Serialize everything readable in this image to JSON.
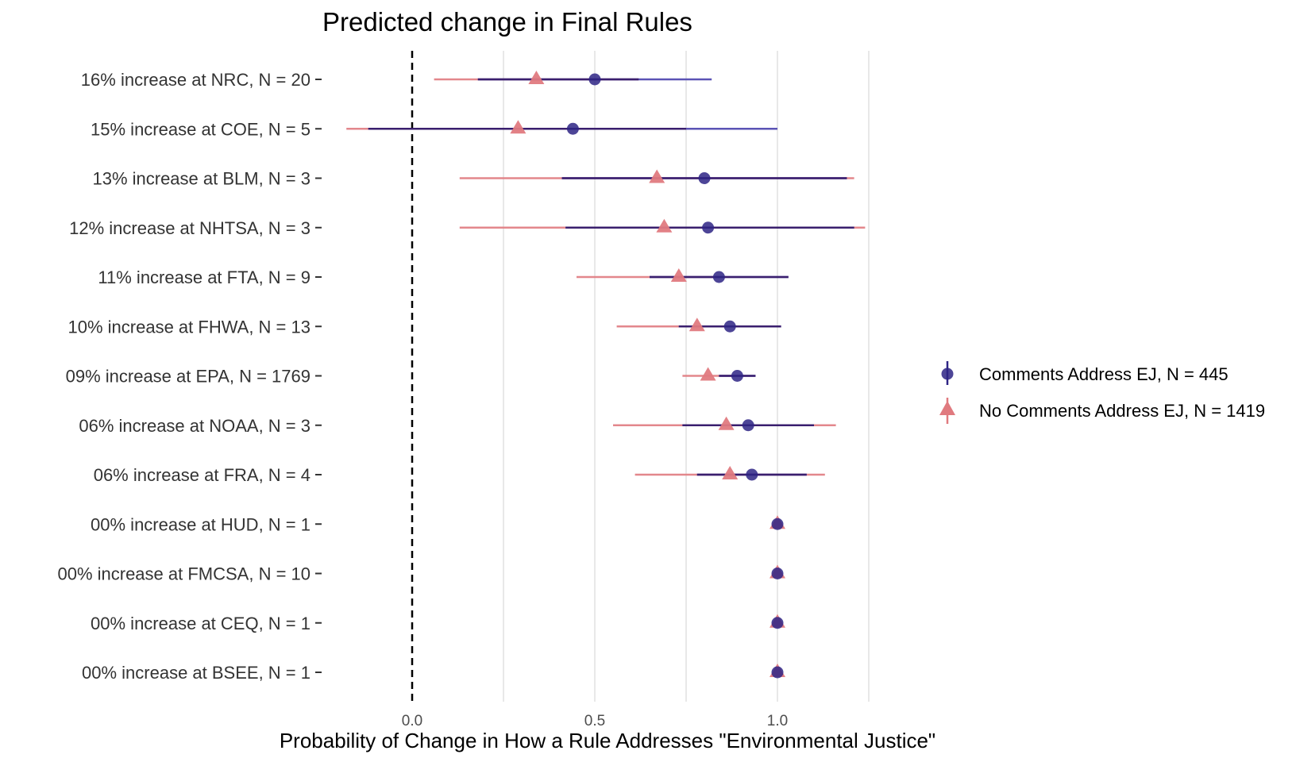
{
  "chart_data": {
    "type": "scatter",
    "title": "Predicted change in Final Rules",
    "xlabel": "Probability of Change in How a Rule Addresses \"Environmental Justice\"",
    "ylabel": "",
    "xlim": [
      -0.18,
      1.25
    ],
    "x_ticks": [
      0.0,
      0.5,
      1.0
    ],
    "x_tick_labels": [
      "0.0",
      "0.5",
      "1.0"
    ],
    "reference_line": {
      "x": 0,
      "style": "dashed"
    },
    "grid": {
      "vertical": true,
      "horizontal": false
    },
    "legend_position": "right",
    "categories": [
      "16% increase at NRC, N = 20",
      "15% increase at COE, N = 5",
      "13% increase at BLM, N = 3",
      "12% increase at NHTSA, N = 3",
      "11% increase at FTA, N = 9",
      "10% increase at FHWA, N = 13",
      "09% increase at EPA, N = 1769",
      "06% increase at NOAA, N = 3",
      "06% increase at FRA, N = 4",
      "00% increase at HUD, N = 1",
      "00% increase at FMCSA, N = 10",
      "00% increase at CEQ, N = 1",
      "00% increase at BSEE, N = 1"
    ],
    "series": [
      {
        "name": "Comments Address EJ, N = 445",
        "color": "#2E2585",
        "marker": "circle",
        "estimate": [
          0.5,
          0.44,
          0.8,
          0.81,
          0.84,
          0.87,
          0.89,
          0.92,
          0.93,
          1.0,
          1.0,
          1.0,
          1.0
        ],
        "ci_inner_low": [
          0.18,
          -0.12,
          0.41,
          0.42,
          0.65,
          0.73,
          0.84,
          0.74,
          0.78,
          1.0,
          1.0,
          1.0,
          1.0
        ],
        "ci_inner_high": [
          0.62,
          0.75,
          1.19,
          1.21,
          1.03,
          1.01,
          0.94,
          1.1,
          1.08,
          1.0,
          1.0,
          1.0,
          1.0
        ],
        "ci_outer_low": [
          0.18,
          -0.12,
          0.41,
          0.42,
          0.65,
          0.73,
          0.84,
          0.74,
          0.78,
          1.0,
          1.0,
          1.0,
          1.0
        ],
        "ci_outer_high": [
          0.82,
          1.0,
          1.19,
          1.21,
          1.03,
          1.01,
          0.94,
          1.1,
          1.08,
          1.0,
          1.0,
          1.0,
          1.0
        ]
      },
      {
        "name": "No Comments Address EJ, N = 1419",
        "color": "#E07A7F",
        "marker": "triangle",
        "estimate": [
          0.34,
          0.29,
          0.67,
          0.69,
          0.73,
          0.78,
          0.81,
          0.86,
          0.87,
          1.0,
          1.0,
          1.0,
          1.0
        ],
        "ci_low": [
          0.06,
          -0.18,
          0.13,
          0.13,
          0.45,
          0.56,
          0.74,
          0.55,
          0.61,
          1.0,
          1.0,
          1.0,
          1.0
        ],
        "ci_high": [
          0.62,
          0.75,
          1.21,
          1.24,
          0.84,
          0.93,
          0.88,
          1.16,
          1.13,
          1.0,
          1.0,
          1.0,
          1.0
        ]
      }
    ]
  }
}
